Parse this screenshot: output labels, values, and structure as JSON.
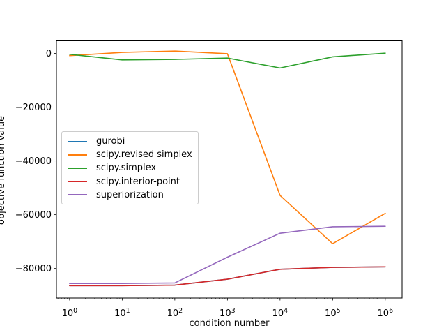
{
  "figure": {
    "background": "#ffffff",
    "axes_edge_color": "#000000"
  },
  "chart_data": {
    "type": "line",
    "title": "",
    "xlabel": "condition number",
    "ylabel": "objective function value",
    "x_scale": "log",
    "grid": false,
    "legend_position": "center left",
    "x": [
      1,
      10,
      100,
      1000,
      10000,
      100000,
      1000000
    ],
    "x_tick_exponents": [
      0,
      1,
      2,
      3,
      4,
      5,
      6
    ],
    "y_ticks": [
      0,
      -20000,
      -40000,
      -60000,
      -80000
    ],
    "xlim_log": [
      -0.25,
      6.32
    ],
    "ylim": [
      -91000,
      4700
    ],
    "series": [
      {
        "name": "gurobi",
        "color": "#1f77b4",
        "values": [
          -86400,
          -86400,
          -86200,
          -84000,
          -80300,
          -79600,
          -79400
        ]
      },
      {
        "name": "scipy.revised simplex",
        "color": "#ff7f0e",
        "values": [
          -800,
          400,
          900,
          -100,
          -52800,
          -70800,
          -59500
        ]
      },
      {
        "name": "scipy.simplex",
        "color": "#2ca02c",
        "values": [
          -300,
          -2400,
          -2200,
          -1700,
          -5400,
          -1250,
          100
        ]
      },
      {
        "name": "scipy.interior-point",
        "color": "#d62728",
        "values": [
          -86400,
          -86400,
          -86200,
          -84000,
          -80300,
          -79600,
          -79400
        ]
      },
      {
        "name": "superiorization",
        "color": "#9467bd",
        "values": [
          -85600,
          -85600,
          -85400,
          -75800,
          -66900,
          -64500,
          -64300
        ]
      }
    ]
  }
}
